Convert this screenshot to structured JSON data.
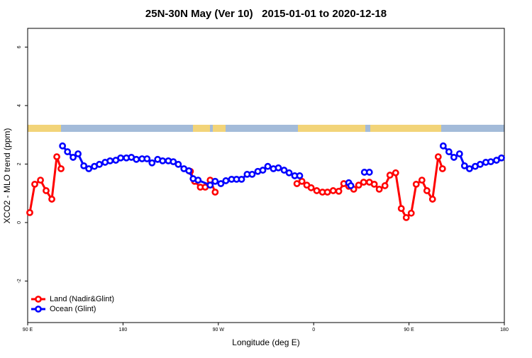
{
  "chart_data": {
    "type": "line",
    "title": "25N-30N May (Ver 10)   2015-01-01 to 2020-12-18",
    "xlabel": "Longitude (deg E)",
    "ylabel": "XCO2 - MLO trend (ppm)",
    "xlim": [
      90,
      540
    ],
    "ylim": [
      -3.42,
      6.64
    ],
    "xticks": [
      {
        "value": 90,
        "label": "90 E"
      },
      180,
      {
        "value": 270,
        "label": "90 W"
      },
      {
        "value": 360,
        "label": "0"
      },
      {
        "value": 450,
        "label": "90 E"
      },
      {
        "value": 540,
        "label": "180"
      }
    ],
    "yticks": [
      -2,
      0,
      2,
      4,
      6
    ],
    "legend": "bottom-left",
    "series": [
      {
        "name": "Land (Nadir&Glint)",
        "color": "#ff0000",
        "x": [
          92.0,
          96.7,
          102.1,
          107.4,
          112.8,
          117.5,
          121.5,
          null,
          243.6,
          247.6,
          253.0,
          257.6,
          262.3,
          267.0,
          null,
          344.2,
          348.9,
          353.5,
          357.6,
          362.9,
          368.3,
          373.0,
          378.4,
          383.7,
          388.4,
          393.1,
          397.8,
          402.5,
          407.2,
          412.6,
          417.2,
          421.9,
          427.3,
          432.0,
          437.4,
          442.7,
          447.4,
          452.1,
          456.8,
          462.2,
          466.9,
          472.2,
          477.6,
          481.6
        ],
        "values": [
          0.34,
          1.31,
          1.45,
          1.09,
          0.8,
          2.25,
          1.84,
          null,
          1.75,
          1.41,
          1.21,
          1.21,
          1.45,
          1.04,
          null,
          1.33,
          1.41,
          1.28,
          1.19,
          1.09,
          1.04,
          1.04,
          1.09,
          1.07,
          1.33,
          1.24,
          1.14,
          1.28,
          1.38,
          1.38,
          1.31,
          1.14,
          1.26,
          1.62,
          1.7,
          0.48,
          0.17,
          0.32,
          1.31,
          1.45,
          1.09,
          0.8,
          2.25,
          1.84
        ]
      },
      {
        "name": "Ocean (Glint)",
        "color": "#0000ff",
        "x": [
          122.9,
          127.6,
          132.9,
          137.6,
          143.0,
          147.7,
          153.0,
          157.7,
          163.1,
          167.8,
          173.2,
          177.8,
          183.2,
          187.9,
          192.6,
          198.0,
          202.7,
          207.4,
          212.7,
          217.4,
          222.8,
          227.5,
          232.2,
          237.5,
          242.2,
          246.2,
          250.9,
          262.3,
          267.0,
          272.4,
          277.1,
          282.5,
          287.2,
          291.9,
          297.2,
          301.9,
          307.3,
          312.0,
          316.7,
          322.0,
          326.7,
          332.1,
          336.8,
          342.1,
          346.8,
          null,
          393.1,
          395.1,
          null,
          407.9,
          412.6,
          null,
          482.3,
          487.7,
          492.4,
          497.7,
          502.4,
          507.1,
          512.5,
          517.2,
          522.5,
          527.2,
          532.6,
          537.3
        ],
        "values": [
          2.62,
          2.42,
          2.23,
          2.35,
          1.94,
          1.84,
          1.92,
          1.99,
          2.06,
          2.11,
          2.13,
          2.21,
          2.21,
          2.23,
          2.16,
          2.18,
          2.18,
          2.04,
          2.16,
          2.11,
          2.11,
          2.08,
          1.99,
          1.84,
          1.77,
          1.5,
          1.45,
          1.28,
          1.41,
          1.33,
          1.43,
          1.48,
          1.48,
          1.48,
          1.65,
          1.65,
          1.75,
          1.79,
          1.92,
          1.84,
          1.87,
          1.79,
          1.7,
          1.6,
          1.6,
          null,
          1.36,
          1.26,
          null,
          1.72,
          1.72,
          null,
          2.62,
          2.42,
          2.23,
          2.35,
          1.94,
          1.84,
          1.92,
          1.99,
          2.06,
          2.08,
          2.13,
          2.21
        ]
      }
    ]
  }
}
